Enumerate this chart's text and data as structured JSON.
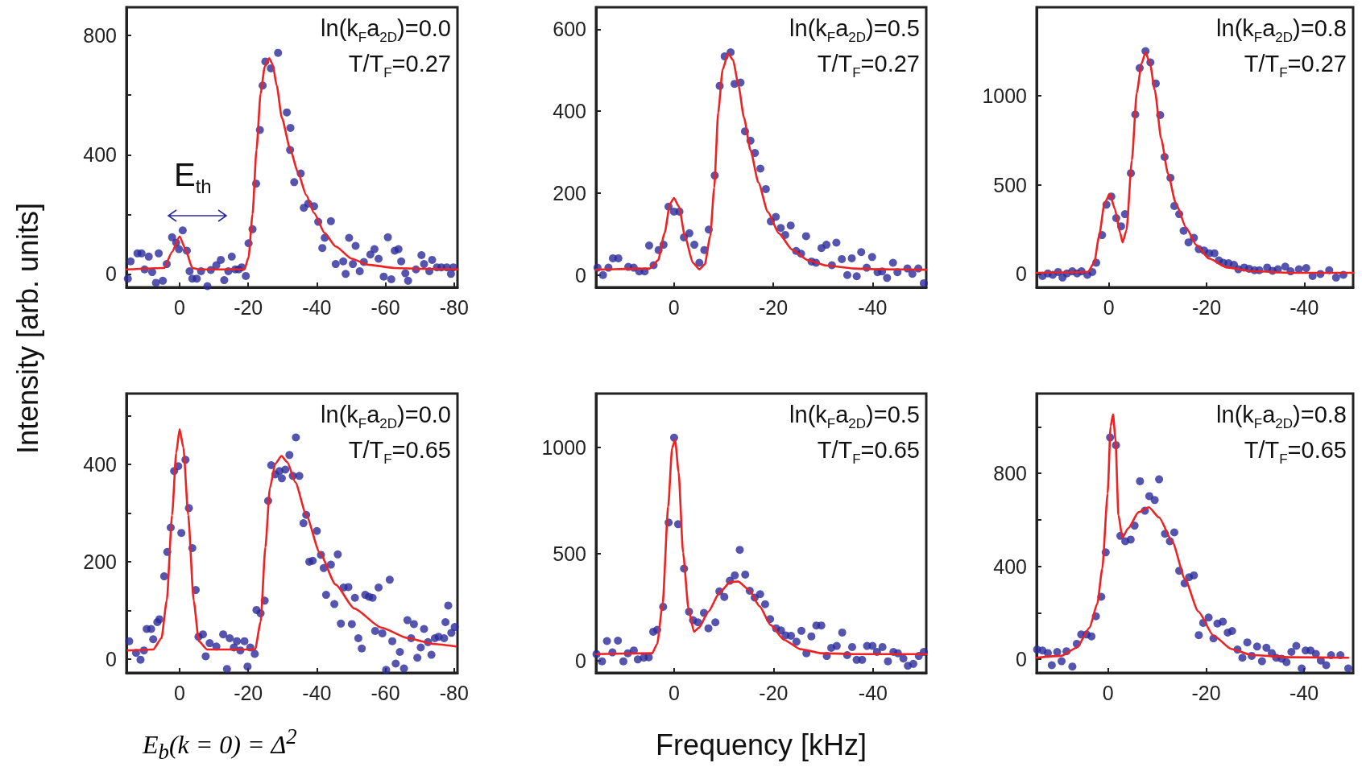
{
  "chart_data": [
    {
      "type": "scatter",
      "ylabel": "Intensity [arb. units]",
      "annotations": [
        "ln(k$_{F}$a$_{2D}$)=0.0",
        "T/T$_{F}$=0.27",
        "E$_{th}$"
      ],
      "marker": "circle",
      "xlim": [
        15.5,
        -81
      ],
      "xticks": [
        0,
        -20,
        -40,
        -60,
        -80
      ],
      "ylim": [
        -45,
        895
      ],
      "yticks": [
        0,
        {
          "value": 200,
          "label": null
        },
        400,
        {
          "value": 600,
          "label": null
        },
        800
      ],
      "series": [
        {
          "type": "scatter",
          "color": "#2b2b9b",
          "x": [
            15.1,
            14.3,
            12.3,
            11.1,
            10.2,
            9.0,
            8.0,
            6.9,
            6.1,
            4.9,
            3.75,
            2.2,
            1.0,
            0.2,
            -0.9,
            -2.1,
            -2.9,
            -3.7,
            -5,
            -6.25,
            -8.1,
            -9.1,
            -10.7,
            -12.0,
            -13.0,
            -14.2,
            -15.2,
            -16.2,
            -17.2,
            -18.1,
            -19.3,
            -20.1,
            -21.25,
            -22.3,
            -23.4,
            -24.2,
            -25.0,
            -26.6,
            -28.7,
            -31.25,
            -32.3,
            -32.2,
            -33.4,
            -35.3,
            -36.2,
            -37.5,
            -39.2,
            -40.4,
            -42.3,
            -44.1,
            -41.6,
            -45.5,
            -47.7,
            -48.4,
            -49.4,
            -50.5,
            -51.3,
            -52.5,
            -53.7,
            -55.6,
            -56.8,
            -58.0,
            -59.5,
            -60.7,
            -61.7,
            -62.7,
            -63.8,
            -64.6,
            -65.8,
            -66.6,
            -68.9,
            -70.5,
            -71.25,
            -72.8,
            -73.6,
            -75.0,
            -76.3,
            -77.9,
            -79.1,
            -79.8
          ],
          "values": [
            -16,
            42,
            69,
            69,
            15,
            58,
            6,
            -30,
            69,
            -23,
            33,
            123,
            105,
            83,
            146,
            78,
            9,
            -16,
            -16,
            9,
            -41,
            13,
            29,
            47,
            -21,
            9,
            58,
            15,
            15,
            22,
            -7,
            103,
            150,
            303,
            483,
            632,
            713,
            690,
            742,
            542,
            490,
            416,
            308,
            337,
            222,
            236,
            227,
            175,
            121,
            177,
            87,
            33,
            42,
            0,
            121,
            33,
            94,
            9,
            40,
            65,
            83,
            51,
            -9,
            123,
            -18,
            78,
            83,
            42,
            2,
            -23,
            15,
            63,
            33,
            9,
            47,
            22,
            22,
            22,
            0,
            22
          ]
        },
        {
          "type": "line",
          "color": "#ee2222",
          "marker": "none",
          "line_style": "solid",
          "x": [
            15.5,
            4.5,
            2.2,
            0,
            -1.7,
            -3.7,
            -5.6,
            -18.9,
            -20.1,
            -21.25,
            -22.4,
            -23.6,
            -24.8,
            -26.1,
            -27.1,
            -28.3,
            -29.8,
            -32.2,
            -34.5,
            -36.9,
            -39.2,
            -42.3,
            -45.5,
            -50.2,
            -54.8,
            -62.7,
            -70.5,
            -81
          ],
          "values": [
            15,
            20,
            74,
            126,
            83,
            20,
            15,
            15,
            56,
            200,
            416,
            605,
            695,
            724,
            704,
            632,
            524,
            420,
            340,
            265,
            204,
            137,
            92,
            51,
            31,
            20,
            17,
            15
          ]
        }
      ]
    },
    {
      "type": "scatter",
      "annotations": [
        "ln(k$_{F}$a$_{2D}$)=0.5",
        "T/T$_{F}$=0.27"
      ],
      "marker": "circle",
      "xlim": [
        15.7,
        -50.8
      ],
      "xticks": [
        0,
        -20,
        -40
      ],
      "ylim": [
        -30,
        654
      ],
      "yticks": [
        0,
        200,
        400,
        600
      ],
      "series": [
        {
          "type": "scatter",
          "color": "#2b2b9b",
          "x": [
            15.4,
            14.3,
            13.2,
            12.3,
            11.2,
            9.2,
            8.1,
            7.0,
            5.9,
            5.0,
            4.1,
            3.1,
            2.1,
            1.1,
            0,
            -1.1,
            -2.0,
            -3.1,
            -4.1,
            -5.1,
            -6.1,
            -7.0,
            -8.2,
            -9.2,
            -10.2,
            -11.4,
            -12.2,
            -13.4,
            -14.3,
            -15.4,
            -16.3,
            -17.4,
            -18.5,
            -19.5,
            -20.5,
            -21.5,
            -22.4,
            -23.5,
            -24.6,
            -25.6,
            -26.6,
            -27.7,
            -28.6,
            -29.7,
            -30.7,
            -31.8,
            -32.7,
            -33.8,
            -34.9,
            -35.8,
            -36.8,
            -37.7,
            -38.8,
            -39.9,
            -41.0,
            -41.9,
            -42.9,
            -44.1,
            -45.0,
            -47.0,
            -48.0,
            -49.2,
            -50.3
          ],
          "values": [
            18,
            0,
            18,
            41,
            41,
            20,
            18,
            9,
            9,
            72,
            24,
            61,
            74,
            167,
            155,
            155,
            92,
            102,
            74,
            30,
            61,
            111,
            243,
            462,
            534,
            544,
            467,
            470,
            351,
            328,
            298,
            260,
            210,
            131,
            142,
            115,
            98,
            121,
            59,
            52,
            95,
            33,
            30,
            66,
            74,
            24,
            79,
            39,
            0,
            41,
            -3,
            56,
            18,
            44,
            7,
            9,
            -7,
            30,
            7,
            16,
            3,
            16,
            -20
          ]
        },
        {
          "type": "line",
          "color": "#ee2222",
          "marker": "none",
          "line_style": "solid",
          "x": [
            15.7,
            4.9,
            3.2,
            1.9,
            0.8,
            0,
            -1.0,
            -2.2,
            -3.8,
            -5.1,
            -6.2,
            -7.3,
            -8.1,
            -8.9,
            -9.8,
            -10.9,
            -11.9,
            -13.0,
            -14.1,
            -15.4,
            -17.0,
            -18.9,
            -21.1,
            -23.8,
            -27.0,
            -30.8,
            -36.2,
            -41.6,
            -50.8
          ],
          "values": [
            13,
            16,
            36,
            102,
            174,
            188,
            167,
            95,
            30,
            14,
            26,
            95,
            213,
            397,
            502,
            541,
            525,
            462,
            384,
            305,
            226,
            154,
            102,
            62,
            36,
            23,
            16,
            14,
            13
          ]
        }
      ]
    },
    {
      "type": "scatter",
      "annotations": [
        "ln(k$_{F}$a$_{2D}$)=0.8",
        "T/T$_{F}$=0.27"
      ],
      "marker": "circle",
      "xlim": [
        14.8,
        -50
      ],
      "xticks": [
        0,
        -20,
        -40
      ],
      "ylim": [
        -75,
        1495
      ],
      "yticks": [
        0,
        500,
        1000
      ],
      "series": [
        {
          "type": "scatter",
          "color": "#2b2b9b",
          "x": [
            13.6,
            12.5,
            11.5,
            10.4,
            9.5,
            8.6,
            7.5,
            6.5,
            5.6,
            4.4,
            3.4,
            2.6,
            1.4,
            0.5,
            -0.5,
            -1.5,
            -2.5,
            -3.3,
            -4.5,
            -5.4,
            -6.3,
            -7.5,
            -8.5,
            -9.6,
            -10.5,
            -11.4,
            -12.6,
            -13.4,
            -14.4,
            -15.3,
            -16.3,
            -17.4,
            -18.4,
            -19.5,
            -20.5,
            -21.6,
            -22.5,
            -23.4,
            -24.5,
            -25.6,
            -26.5,
            -27.7,
            -28.7,
            -29.8,
            -30.8,
            -32.4,
            -33.5,
            -34.6,
            -36.1,
            -37.2,
            -38.9,
            -40.4,
            -41.7,
            -43.3,
            -45.1,
            -46.5,
            -48.0
          ],
          "values": [
            -12,
            3,
            -5,
            11,
            -20,
            3,
            15,
            3,
            15,
            -5,
            11,
            63,
            218,
            388,
            434,
            313,
            267,
            335,
            565,
            894,
            1154,
            1249,
            1186,
            1068,
            891,
            656,
            539,
            381,
            335,
            242,
            177,
            202,
            139,
            131,
            116,
            116,
            76,
            63,
            60,
            51,
            26,
            36,
            29,
            21,
            21,
            36,
            18,
            26,
            41,
            15,
            26,
            33,
            -12,
            0,
            21,
            -20,
            -5
          ]
        },
        {
          "type": "line",
          "color": "#ee2222",
          "marker": "none",
          "line_style": "solid",
          "x": [
            14.8,
            4.3,
            3.0,
            2.0,
            0.9,
            -0.2,
            -1.2,
            -2.3,
            -2.8,
            -3.6,
            -4.7,
            -5.7,
            -6.7,
            -7.5,
            -8.4,
            -9.4,
            -10.7,
            -12.1,
            -13.7,
            -15.8,
            -17.9,
            -20.5,
            -24.2,
            -29.5,
            -37.5,
            -50
          ],
          "values": [
            6,
            11,
            63,
            214,
            396,
            449,
            366,
            230,
            177,
            245,
            637,
            1015,
            1181,
            1242,
            1181,
            1030,
            758,
            562,
            396,
            260,
            162,
            86,
            36,
            15,
            6,
            6
          ]
        }
      ]
    },
    {
      "type": "scatter",
      "annotations": [
        "ln(k$_{F}$a$_{2D}$)=0.0",
        "T/T$_{F}$=0.65",
        "E$_{b}$(k = 0) = Δ$^{2}$"
      ],
      "marker": "circle",
      "xlim": [
        15.5,
        -81
      ],
      "xticks": [
        0,
        -20,
        -40,
        -60,
        -80
      ],
      "ylim": [
        -28,
        545
      ],
      "yticks": [
        0,
        {
          "value": 100,
          "label": null
        },
        200,
        {
          "value": 300,
          "label": null
        },
        400,
        {
          "value": 500,
          "label": null
        }
      ],
      "series": [
        {
          "type": "scatter",
          "color": "#2b2b9b",
          "x": [
            14.7,
            12.7,
            11.4,
            10.4,
            9.6,
            8.3,
            7.7,
            6.5,
            5.9,
            4.5,
            3.6,
            2.6,
            1.6,
            0.4,
            -0.5,
            -1.7,
            -2.7,
            -3.7,
            -4.7,
            -5.5,
            -6.8,
            -7.6,
            -8.75,
            -10.7,
            -12.7,
            -13.8,
            -14.6,
            -15.8,
            -16.7,
            -17.7,
            -18.9,
            -19.8,
            -20.6,
            -21.9,
            -22.4,
            -23.6,
            -24.8,
            -25.8,
            -26.7,
            -27.9,
            -29.1,
            -29.8,
            -30.8,
            -32.0,
            -33.0,
            -33.9,
            -34.9,
            -36.1,
            -36.9,
            -37.8,
            -38.8,
            -40.0,
            -41.2,
            -42.0,
            -42.7,
            -44.1,
            -45.1,
            -46.1,
            -47.0,
            -47.8,
            -49.2,
            -50.2,
            -51.1,
            -52.1,
            -53.1,
            -54.1,
            -55.2,
            -56.25,
            -57.0,
            -58.0,
            -59.1,
            -60.2,
            -61.25,
            -62.0,
            -63.0,
            -64.2,
            -65.4,
            -66.4,
            -67.5,
            -68.3,
            -69.3,
            -70.3,
            -71.25,
            -72.4,
            -73.4,
            -74.4,
            -75.5,
            -77.1,
            -77.5,
            -78.3,
            -79.2,
            -80.2
          ],
          "values": [
            37,
            13,
            -1,
            18,
            62,
            62,
            41,
            76,
            82,
            170,
            220,
            270,
            386,
            396,
            259,
            409,
            310,
            228,
            142,
            46,
            51,
            6,
            33,
            26,
            51,
            -20,
            43,
            24,
            37,
            18,
            37,
            -15,
            24,
            11,
            101,
            94,
            120,
            325,
            398,
            379,
            386,
            371,
            389,
            419,
            376,
            455,
            376,
            279,
            296,
            200,
            202,
            263,
            214,
            187,
            132,
            194,
            113,
            215,
            73,
            147,
            148,
            72,
            126,
            43,
            22,
            132,
            128,
            126,
            58,
            147,
            53,
            -22,
            163,
            37,
            -9,
            15,
            -19,
            80,
            43,
            72,
            3,
            24,
            62,
            35,
            9,
            43,
            46,
            43,
            76,
            110,
            54,
            66
          ]
        },
        {
          "type": "line",
          "color": "#ee2222",
          "marker": "none",
          "line_style": "solid",
          "x": [
            15.1,
            7.7,
            5.3,
            3.75,
            2.2,
            1.0,
            0,
            -1.1,
            -2.5,
            -4.1,
            -5.6,
            -8.0,
            -22.0,
            -23.6,
            -25.0,
            -26.3,
            -27.9,
            -29.7,
            -31.4,
            -33.75,
            -36.9,
            -40.8,
            -45.5,
            -50.9,
            -58.75,
            -66.6,
            -74.4,
            -80.6
          ],
          "values": [
            18,
            20,
            43,
            120,
            296,
            423,
            472,
            434,
            296,
            120,
            37,
            20,
            20,
            76,
            230,
            351,
            401,
            417,
            404,
            363,
            296,
            219,
            153,
            104,
            65,
            43,
            31,
            26
          ]
        }
      ]
    },
    {
      "type": "scatter",
      "xlabel": "Frequency [kHz]",
      "annotations": [
        "ln(k$_{F}$a$_{2D}$)=0.5",
        "T/T$_{F}$=0.65"
      ],
      "marker": "circle",
      "xlim": [
        15.7,
        -50.7
      ],
      "xticks": [
        0,
        -20,
        -40
      ],
      "ylim": [
        -58,
        1252
      ],
      "yticks": [
        0,
        500,
        1000
      ],
      "series": [
        {
          "type": "scatter",
          "color": "#2b2b9b",
          "x": [
            15.6,
            14.5,
            13.5,
            12.4,
            11.3,
            10.2,
            9.3,
            8.1,
            7.3,
            6.1,
            5.1,
            4.2,
            3.4,
            2.2,
            1.1,
            0,
            -0.8,
            -2.0,
            -3.0,
            -3.8,
            -4.8,
            -6.0,
            -6.9,
            -8.3,
            -9.1,
            -10.1,
            -11.2,
            -12.2,
            -13.2,
            -14.3,
            -15.2,
            -16.2,
            -17.3,
            -18.3,
            -19.3,
            -20.5,
            -21.5,
            -22.4,
            -23.5,
            -24.6,
            -25.6,
            -26.6,
            -27.6,
            -28.6,
            -29.6,
            -30.7,
            -31.6,
            -32.7,
            -33.8,
            -34.8,
            -35.8,
            -36.7,
            -37.8,
            -38.8,
            -39.9,
            -40.8,
            -41.9,
            -43.0,
            -44.1,
            -45.0,
            -46.1,
            -47.0,
            -48.1,
            -49.2,
            -50.2
          ],
          "values": [
            30,
            -4,
            91,
            38,
            93,
            -4,
            34,
            47,
            5,
            13,
            15,
            135,
            144,
            252,
            647,
            1045,
            639,
            431,
            229,
            189,
            179,
            223,
            151,
            179,
            324,
            298,
            374,
            399,
            519,
            403,
            327,
            295,
            311,
            264,
            194,
            151,
            141,
            118,
            116,
            88,
            139,
            34,
            113,
            164,
            164,
            21,
            59,
            68,
            131,
            25,
            63,
            3,
            3,
            68,
            68,
            40,
            63,
            -4,
            40,
            34,
            9,
            -25,
            -16,
            21,
            40
          ]
        },
        {
          "type": "line",
          "color": "#ee2222",
          "marker": "none",
          "line_style": "solid",
          "x": [
            15.7,
            4.4,
            3.4,
            2.3,
            1.2,
            0.4,
            -0.2,
            -0.9,
            -1.8,
            -2.9,
            -4.0,
            -5.0,
            -6.9,
            -9.1,
            -11.3,
            -12.9,
            -15.1,
            -17.2,
            -19.4,
            -22.1,
            -25.4,
            -29.7,
            -36.2,
            -50.7
          ],
          "values": [
            30,
            34,
            78,
            267,
            720,
            997,
            1035,
            884,
            506,
            242,
            135,
            154,
            229,
            317,
            368,
            370,
            330,
            254,
            166,
            97,
            53,
            34,
            30,
            30
          ]
        }
      ]
    },
    {
      "type": "scatter",
      "annotations": [
        "ln(k$_{F}$a$_{2D}$)=0.8",
        "T/T$_{F}$=0.65"
      ],
      "marker": "circle",
      "xlim": [
        14.6,
        -50
      ],
      "xticks": [
        0,
        -20,
        -40
      ],
      "ylim": [
        -58,
        1143
      ],
      "yticks": [
        0,
        {
          "value": 200,
          "label": null
        },
        400,
        {
          "value": 600,
          "label": null
        },
        800,
        {
          "value": 1000,
          "label": null
        }
      ],
      "series": [
        {
          "type": "scatter",
          "color": "#2b2b9b",
          "x": [
            14.5,
            13.4,
            12.3,
            11.5,
            10.4,
            9.5,
            8.5,
            7.3,
            6.4,
            5.5,
            4.4,
            3.4,
            2.5,
            1.4,
            0.5,
            -0.4,
            -1.6,
            -2.5,
            -3.5,
            -4.6,
            -5.4,
            -6.5,
            -7.5,
            -8.4,
            -9.5,
            -10.4,
            -11.6,
            -12.6,
            -13.5,
            -14.5,
            -15.6,
            -16.5,
            -17.5,
            -18.5,
            -19.4,
            -20.5,
            -21.5,
            -22.3,
            -23.4,
            -24.4,
            -25.3,
            -26.4,
            -27.4,
            -28.4,
            -29.3,
            -30.4,
            -31.4,
            -32.3,
            -33.4,
            -34.3,
            -35.4,
            -36.4,
            -37.4,
            -38.4,
            -39.5,
            -40.3,
            -41.3,
            -42.4,
            -43.4,
            -44.5,
            -45.5,
            -47.4,
            -49.0
          ],
          "values": [
            42,
            38,
            27,
            -25,
            32,
            -8,
            35,
            -31,
            67,
            107,
            107,
            99,
            185,
            269,
            460,
            954,
            921,
            531,
            508,
            515,
            575,
            766,
            639,
            702,
            685,
            774,
            540,
            508,
            546,
            381,
            327,
            353,
            361,
            104,
            157,
            180,
            90,
            154,
            162,
            115,
            122,
            42,
            7,
            73,
            15,
            55,
            -8,
            50,
            27,
            7,
            3,
            -12,
            32,
            58,
            -39,
            38,
            38,
            23,
            -5,
            -25,
            18,
            18,
            -39
          ]
        },
        {
          "type": "line",
          "color": "#ee2222",
          "marker": "none",
          "line_style": "solid",
          "x": [
            14.6,
            9.6,
            6.4,
            3.8,
            2.2,
            1.2,
            0.1,
            -0.5,
            -1.0,
            -1.5,
            -2.1,
            -2.9,
            -4.1,
            -6.2,
            -8.3,
            -10.4,
            -13.1,
            -15.7,
            -18.4,
            -21.5,
            -25.2,
            -29.4,
            -37.4,
            -49.0
          ],
          "values": [
            7,
            15,
            50,
            136,
            240,
            390,
            714,
            1002,
            1054,
            945,
            621,
            523,
            564,
            633,
            654,
            610,
            506,
            344,
            206,
            102,
            44,
            18,
            9,
            7
          ]
        }
      ]
    }
  ]
}
